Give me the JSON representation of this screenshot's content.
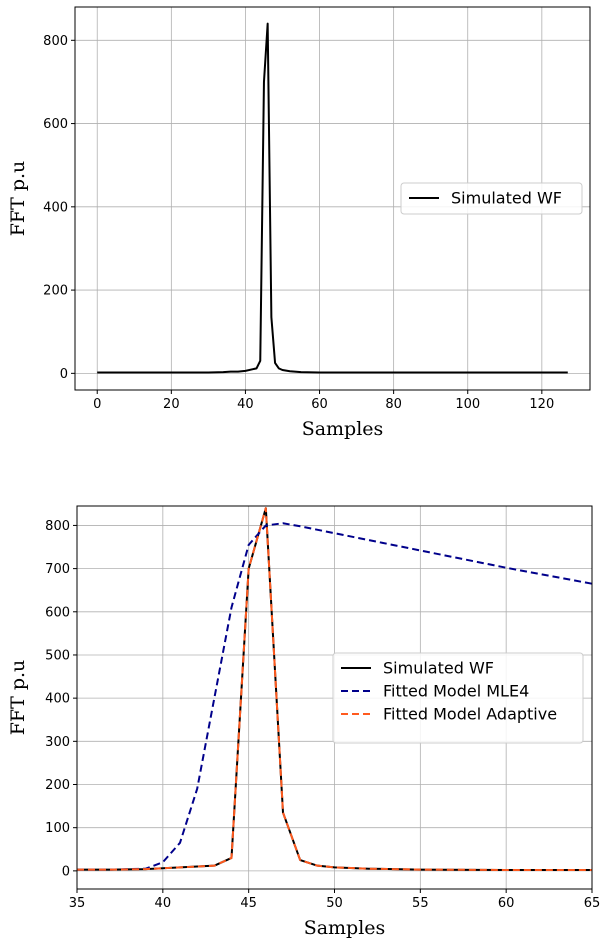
{
  "chart_data": [
    {
      "type": "line",
      "xlabel": "Samples",
      "ylabel": "FFT p.u",
      "xlim": [
        -6,
        133
      ],
      "ylim": [
        -40,
        880
      ],
      "xticks": [
        0,
        20,
        40,
        60,
        80,
        100,
        120
      ],
      "yticks": [
        0,
        200,
        400,
        600,
        800
      ],
      "grid": true,
      "legend_position": "center-right",
      "series": [
        {
          "name": "Simulated WF",
          "color": "#000000",
          "dash": "solid",
          "x": [
            0,
            10,
            20,
            30,
            34,
            36,
            38,
            40,
            42,
            43,
            44,
            45,
            46,
            47,
            48,
            49,
            50,
            52,
            55,
            60,
            70,
            80,
            90,
            100,
            110,
            120,
            127
          ],
          "y": [
            2,
            2,
            2,
            2,
            3,
            4,
            4,
            6,
            10,
            12,
            30,
            700,
            840,
            135,
            25,
            12,
            8,
            5,
            3,
            2,
            2,
            2,
            2,
            2,
            2,
            2,
            2
          ]
        }
      ]
    },
    {
      "type": "line",
      "xlabel": "Samples",
      "ylabel": "FFT p.u",
      "xlim": [
        35,
        65
      ],
      "ylim": [
        -42,
        845
      ],
      "xticks": [
        35,
        40,
        45,
        50,
        55,
        60,
        65
      ],
      "yticks": [
        0,
        100,
        200,
        300,
        400,
        500,
        600,
        700,
        800
      ],
      "grid": true,
      "legend_position": "center-right",
      "series": [
        {
          "name": "Simulated WF",
          "color": "#000000",
          "dash": "solid",
          "x": [
            35,
            37,
            39,
            40,
            41,
            42,
            43,
            44,
            45,
            46,
            47,
            48,
            49,
            50,
            52,
            55,
            60,
            65
          ],
          "y": [
            3,
            3,
            4,
            6,
            8,
            10,
            12,
            30,
            700,
            840,
            135,
            25,
            12,
            8,
            5,
            3,
            2,
            2
          ]
        },
        {
          "name": "Fitted Model MLE4",
          "color": "#00008b",
          "dash": "dashed",
          "x": [
            35,
            37,
            38,
            39,
            40,
            41,
            42,
            43,
            44,
            45,
            46,
            47,
            48,
            50,
            55,
            60,
            65
          ],
          "y": [
            3,
            3,
            4,
            5,
            20,
            65,
            190,
            400,
            610,
            755,
            800,
            805,
            798,
            782,
            742,
            702,
            665
          ]
        },
        {
          "name": "Fitted Model Adaptive",
          "color": "#ff5a1e",
          "dash": "dashed",
          "x": [
            35,
            37,
            39,
            40,
            41,
            42,
            43,
            44,
            45,
            46,
            47,
            48,
            49,
            50,
            52,
            55,
            60,
            65
          ],
          "y": [
            3,
            3,
            4,
            6,
            8,
            10,
            12,
            30,
            700,
            840,
            135,
            25,
            12,
            8,
            5,
            3,
            2,
            2
          ]
        }
      ]
    }
  ]
}
